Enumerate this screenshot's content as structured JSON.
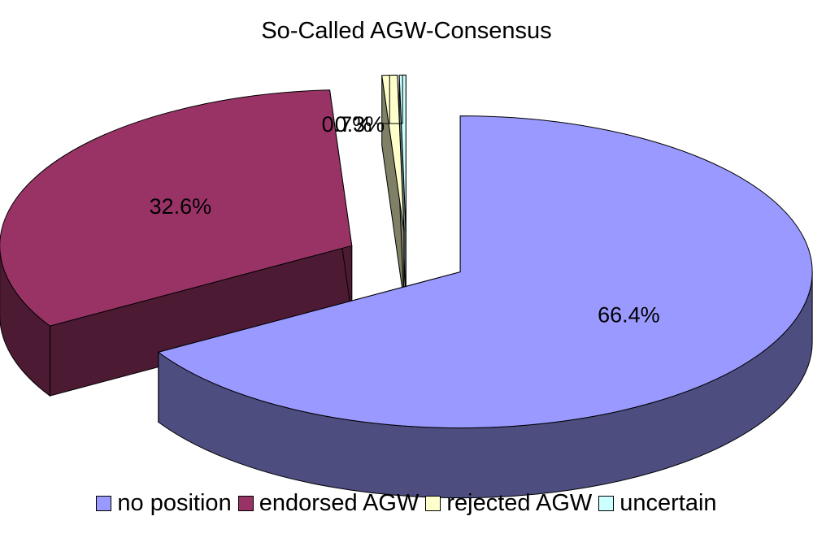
{
  "chart_data": {
    "type": "pie",
    "title": "So-Called AGW-Consensus",
    "categories": [
      "no position",
      "endorsed AGW",
      "rejected AGW",
      "uncertain"
    ],
    "values": [
      66.4,
      32.6,
      0.7,
      0.3
    ],
    "data_labels": [
      "66.4%",
      "32.6%",
      "0.7%",
      "0.3%"
    ],
    "colors": [
      "#9999ff",
      "#993366",
      "#ffffcc",
      "#ccffff"
    ],
    "exploded": true,
    "three_d": true,
    "legend_position": "bottom"
  }
}
